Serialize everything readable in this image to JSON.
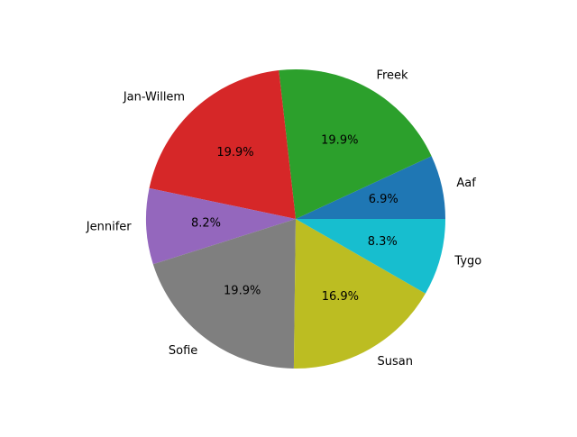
{
  "chart_data": {
    "type": "pie",
    "categories": [
      "Aaf",
      "Freek",
      "Jan-Willem",
      "Jennifer",
      "Sofie",
      "Susan",
      "Tygo"
    ],
    "values": [
      6.9,
      19.9,
      19.9,
      8.2,
      19.9,
      16.9,
      8.3
    ],
    "percent_labels": [
      "6.9%",
      "19.9%",
      "19.9%",
      "8.2%",
      "19.9%",
      "16.9%",
      "8.3%"
    ],
    "colors": [
      "#1f77b4",
      "#2ca02c",
      "#d62728",
      "#9467bd",
      "#7f7f7f",
      "#bcbd22",
      "#17becf"
    ],
    "start_angle_deg": 0,
    "direction": "counterclockwise",
    "title": "",
    "legend": "none"
  }
}
